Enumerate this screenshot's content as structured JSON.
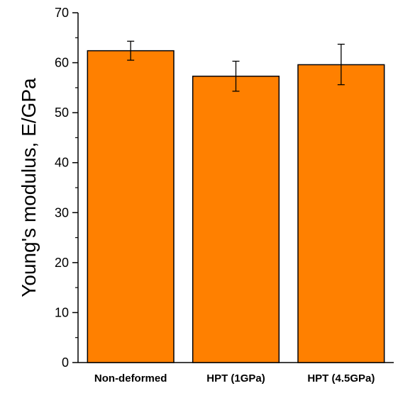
{
  "chart_data": {
    "type": "bar",
    "categories": [
      "Non-deformed",
      "HPT (1GPa)",
      "HPT (4.5GPa)"
    ],
    "values": [
      62.4,
      57.3,
      59.6
    ],
    "error_bars": [
      [
        60.5,
        64.3
      ],
      [
        54.3,
        60.3
      ],
      [
        55.6,
        63.7
      ]
    ],
    "title": "",
    "xlabel": "",
    "ylabel": "Young's modulus, E/GPa",
    "ylim": [
      0,
      70
    ],
    "yticks": [
      0,
      10,
      20,
      30,
      40,
      50,
      60,
      70
    ],
    "ytick_labels": [
      "0",
      "10",
      "20",
      "30",
      "40",
      "50",
      "60",
      "70"
    ],
    "grid": false,
    "legend": "none",
    "colors": {
      "bar_fill": "#FF8000",
      "bar_edge": "#000000",
      "axis": "#000000"
    }
  }
}
